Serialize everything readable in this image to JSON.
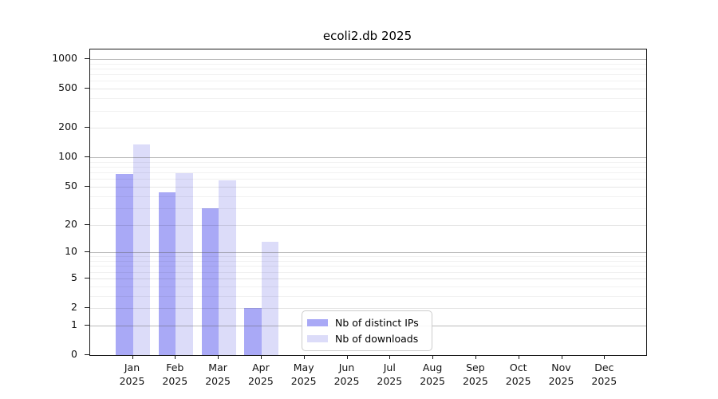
{
  "figure": {
    "title": "ecoli2.db 2025"
  },
  "chart_data": {
    "type": "bar",
    "title": "ecoli2.db 2025",
    "x_categories": [
      "Jan",
      "Feb",
      "Mar",
      "Apr",
      "May",
      "Jun",
      "Jul",
      "Aug",
      "Sep",
      "Oct",
      "Nov",
      "Dec"
    ],
    "x_year_label": "2025",
    "series": [
      {
        "name": "Nb of distinct IPs",
        "color": "#a9a9f6",
        "values": [
          67,
          44,
          30,
          2,
          0,
          0,
          0,
          0,
          0,
          0,
          0,
          0
        ]
      },
      {
        "name": "Nb of downloads",
        "color": "#dcdcf9",
        "values": [
          136,
          69,
          58,
          13,
          0,
          0,
          0,
          0,
          0,
          0,
          0,
          0
        ]
      }
    ],
    "y_scale": "log1p",
    "y_ticks": [
      0,
      1,
      2,
      5,
      10,
      20,
      50,
      100,
      200,
      500,
      1000
    ],
    "y_decade_ticks": [
      1,
      10,
      100,
      1000
    ],
    "y_minor_ticks": [
      3,
      4,
      6,
      7,
      8,
      9,
      30,
      40,
      60,
      70,
      80,
      90,
      300,
      400,
      600,
      700,
      800,
      900
    ],
    "ylim": [
      0,
      1250
    ],
    "grid": true,
    "legend_position": "lower center",
    "legend_items": [
      "Nb of distinct IPs",
      "Nb of downloads"
    ]
  }
}
